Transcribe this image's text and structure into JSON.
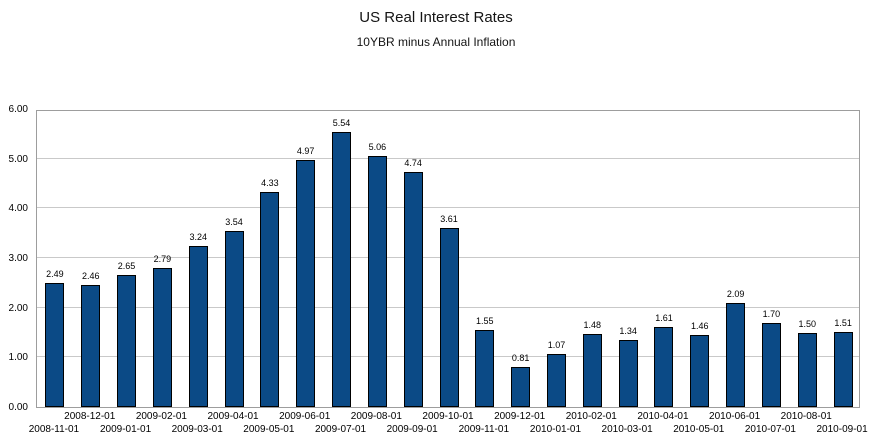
{
  "chart_data": {
    "type": "bar",
    "title": "US Real Interest Rates",
    "subtitle": "10YBR minus Annual Inflation",
    "categories": [
      "2008-11-01",
      "2008-12-01",
      "2009-01-01",
      "2009-02-01",
      "2009-03-01",
      "2009-04-01",
      "2009-05-01",
      "2009-06-01",
      "2009-07-01",
      "2009-08-01",
      "2009-09-01",
      "2009-10-01",
      "2009-11-01",
      "2009-12-01",
      "2010-01-01",
      "2010-02-01",
      "2010-03-01",
      "2010-04-01",
      "2010-05-01",
      "2010-06-01",
      "2010-07-01",
      "2010-08-01",
      "2010-09-01"
    ],
    "values": [
      2.49,
      2.46,
      2.65,
      2.79,
      3.24,
      3.54,
      4.33,
      4.97,
      5.54,
      5.06,
      4.74,
      3.61,
      1.55,
      0.81,
      1.07,
      1.48,
      1.34,
      1.61,
      1.46,
      2.09,
      1.7,
      1.5,
      1.51
    ],
    "labels": [
      "2.49",
      "2.46",
      "2.65",
      "2.79",
      "3.24",
      "3.54",
      "4.33",
      "4.97",
      "5.54",
      "5.06",
      "4.74",
      "3.61",
      "1.55",
      "0.81",
      "1.07",
      "1.48",
      "1.34",
      "1.61",
      "1.46",
      "2.09",
      "1.70",
      "1.50",
      "1.51"
    ],
    "xlabel": "",
    "ylabel": "",
    "ylim": [
      0,
      6
    ],
    "yticks": [
      "0.00",
      "1.00",
      "2.00",
      "3.00",
      "4.00",
      "5.00",
      "6.00"
    ],
    "grid": true,
    "legend_position": "none",
    "bar_color": "#0b4a86",
    "bar_border_color": "#000000",
    "gridline_color": "#c9c9c9"
  }
}
